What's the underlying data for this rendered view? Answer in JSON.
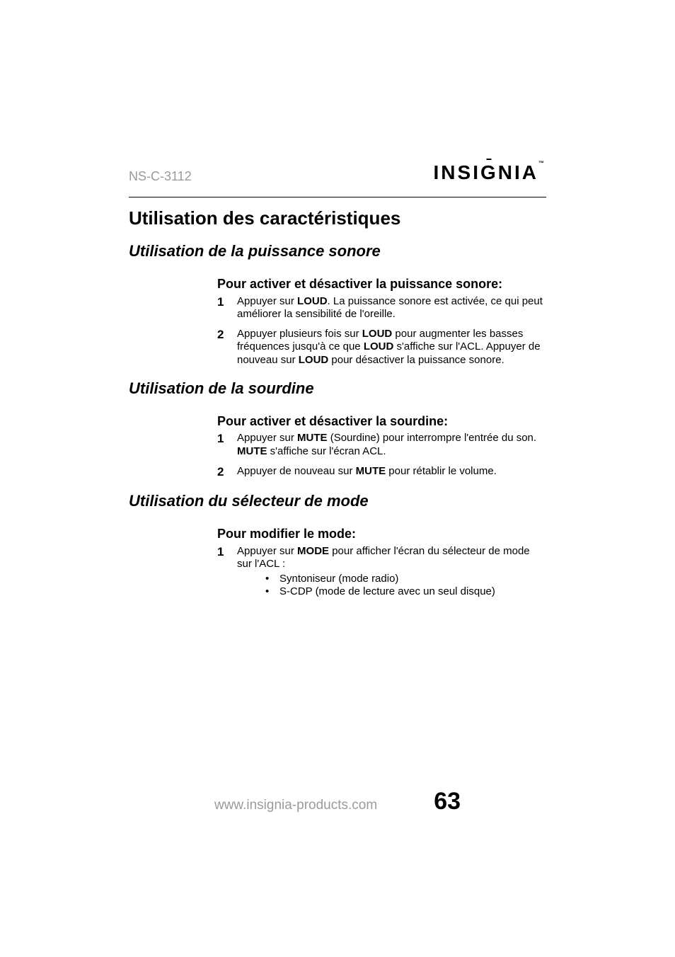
{
  "header": {
    "model": "NS-C-3112",
    "brand_pre": "INSI",
    "brand_g": "G",
    "brand_post": "NIA",
    "brand_tm": "™"
  },
  "title": "Utilisation des caractéristiques",
  "sections": [
    {
      "h2": "Utilisation de la puissance sonore",
      "h3": "Pour activer et désactiver la puissance sonore:",
      "items": [
        {
          "num": "1",
          "runs": [
            {
              "t": "Appuyer sur "
            },
            {
              "t": "LOUD",
              "b": true
            },
            {
              "t": ". La puissance sonore est activée, ce qui peut améliorer la sensibilité de l'oreille."
            }
          ]
        },
        {
          "num": "2",
          "runs": [
            {
              "t": "Appuyer plusieurs fois sur "
            },
            {
              "t": "LOUD",
              "b": true
            },
            {
              "t": " pour augmenter les basses fréquences jusqu'à ce que "
            },
            {
              "t": "LOUD",
              "b": true
            },
            {
              "t": " s'affiche sur l'ACL. Appuyer de nouveau sur "
            },
            {
              "t": "LOUD",
              "b": true
            },
            {
              "t": " pour désactiver la puissance sonore."
            }
          ]
        }
      ]
    },
    {
      "h2": "Utilisation de la sourdine",
      "h3": "Pour activer et désactiver la sourdine:",
      "items": [
        {
          "num": "1",
          "runs": [
            {
              "t": "Appuyer sur "
            },
            {
              "t": "MUTE",
              "b": true
            },
            {
              "t": " (Sourdine) pour interrompre l'entrée du son. "
            },
            {
              "t": "MUTE",
              "b": true
            },
            {
              "t": " s'affiche sur l'écran ACL."
            }
          ]
        },
        {
          "num": "2",
          "runs": [
            {
              "t": "Appuyer de nouveau sur "
            },
            {
              "t": "MUTE",
              "b": true
            },
            {
              "t": " pour rétablir le volume."
            }
          ]
        }
      ]
    },
    {
      "h2": "Utilisation du sélecteur de mode",
      "h3": "Pour modifier le mode:",
      "items": [
        {
          "num": "1",
          "runs": [
            {
              "t": "Appuyer sur "
            },
            {
              "t": "MODE",
              "b": true
            },
            {
              "t": " pour afficher l'écran du sélecteur de mode sur l'ACL :"
            }
          ],
          "sub": [
            "Syntoniseur (mode radio)",
            "S-CDP (mode de lecture avec un seul disque)"
          ]
        }
      ]
    }
  ],
  "footer": {
    "url": "www.insignia-products.com",
    "page": "63"
  },
  "colors": {
    "text": "#000000",
    "muted": "#9a9a9a",
    "bg": "#ffffff"
  },
  "typography": {
    "model_fontsize": 18,
    "brand_fontsize": 28,
    "h1_fontsize": 26,
    "h2_fontsize": 22,
    "h3_fontsize": 18,
    "body_fontsize": 15,
    "footer_url_fontsize": 19,
    "footer_page_fontsize": 34
  }
}
